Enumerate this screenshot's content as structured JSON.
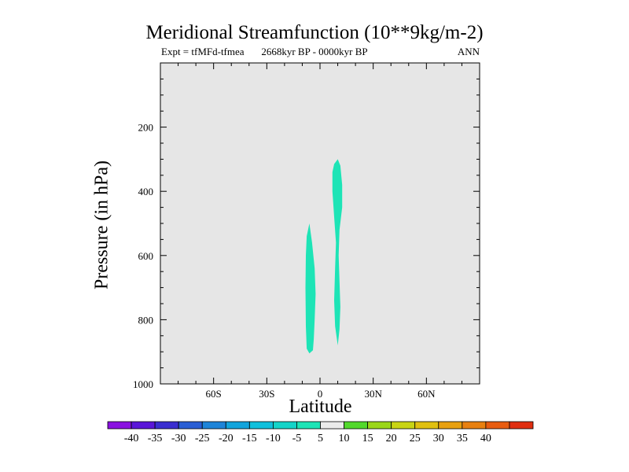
{
  "chart_data": {
    "type": "contour",
    "title": "Meridional Streamfunction (10**9kg/m-2)",
    "subtitle_left": "Expt = tfMFd-tfmea",
    "subtitle_center": "2668kyr BP - 0000kyr BP",
    "subtitle_right": "ANN",
    "xlabel": "Latitude",
    "ylabel": "Pressure (in hPa)",
    "xlim": [
      -90,
      90
    ],
    "ylim": [
      1000,
      0
    ],
    "x_ticks": [
      {
        "value": -60,
        "label": "60S"
      },
      {
        "value": -30,
        "label": "30S"
      },
      {
        "value": 0,
        "label": "0"
      },
      {
        "value": 30,
        "label": "30N"
      },
      {
        "value": 60,
        "label": "60N"
      }
    ],
    "y_ticks": [
      {
        "value": 200,
        "label": "200"
      },
      {
        "value": 400,
        "label": "400"
      },
      {
        "value": 600,
        "label": "600"
      },
      {
        "value": 800,
        "label": "800"
      },
      {
        "value": 1000,
        "label": "1000"
      }
    ],
    "background_color": "#e6e6e6",
    "filled_regions": [
      {
        "name": "cell-near-7S",
        "level": "-10 to -5",
        "color": "#1de4b6",
        "outline": [
          [
            -6,
            500
          ],
          [
            -4.5,
            560
          ],
          [
            -3,
            640
          ],
          [
            -2.5,
            720
          ],
          [
            -3,
            800
          ],
          [
            -3.5,
            860
          ],
          [
            -4,
            895
          ],
          [
            -6,
            905
          ],
          [
            -7.5,
            890
          ],
          [
            -8,
            820
          ],
          [
            -8.2,
            700
          ],
          [
            -8,
            600
          ],
          [
            -7.5,
            540
          ]
        ]
      },
      {
        "name": "cell-near-10N",
        "level": "-10 to -5",
        "color": "#1de4b6",
        "outline": [
          [
            10,
            300
          ],
          [
            11.5,
            320
          ],
          [
            12.5,
            380
          ],
          [
            12.5,
            450
          ],
          [
            11,
            520
          ],
          [
            10.5,
            600
          ],
          [
            11,
            680
          ],
          [
            11.5,
            760
          ],
          [
            11,
            830
          ],
          [
            10,
            880
          ],
          [
            8.5,
            820
          ],
          [
            8,
            740
          ],
          [
            8.5,
            640
          ],
          [
            9,
            560
          ],
          [
            8,
            480
          ],
          [
            7,
            400
          ],
          [
            7,
            340
          ],
          [
            8,
            315
          ]
        ]
      }
    ],
    "colorbar": {
      "labels": [
        "-40",
        "-35",
        "-30",
        "-25",
        "-20",
        "-15",
        "-10",
        "-5",
        "5",
        "10",
        "15",
        "20",
        "25",
        "30",
        "35",
        "40"
      ],
      "colors": [
        "#8a12e0",
        "#5a16d8",
        "#3a2ed0",
        "#2a5ed4",
        "#1e84d8",
        "#12a4dc",
        "#10c0dc",
        "#14d4c8",
        "#1de4b6",
        "#ebebeb",
        "#52d82c",
        "#9ad618",
        "#c8d414",
        "#e0c010",
        "#e8a010",
        "#e88010",
        "#e85c10",
        "#e02e10"
      ]
    }
  }
}
